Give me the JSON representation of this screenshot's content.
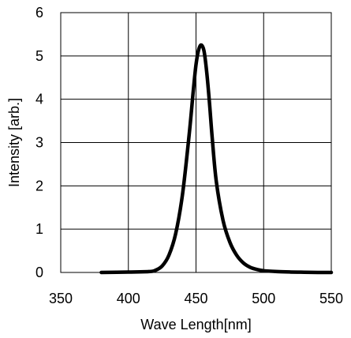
{
  "chart_data": {
    "type": "line",
    "title": "",
    "xlabel": "Wave Length[nm]",
    "ylabel": "Intensity [arb.]",
    "xlim": [
      350,
      550
    ],
    "ylim": [
      0,
      6
    ],
    "x_ticks": [
      350,
      400,
      450,
      500,
      550
    ],
    "y_ticks": [
      0,
      1,
      2,
      3,
      4,
      5,
      6
    ],
    "x_tick_labels": [
      "350",
      "400",
      "450",
      "500",
      "550"
    ],
    "y_tick_labels": [
      "0",
      "1",
      "2",
      "3",
      "4",
      "5",
      "6"
    ],
    "grid": true,
    "legend": "none",
    "series": [
      {
        "color": "#000000",
        "x": [
          380,
          400,
          415,
          420,
          425,
          430,
          435,
          440,
          445,
          448,
          450,
          452,
          454,
          456,
          458,
          460,
          462,
          465,
          470,
          475,
          480,
          485,
          490,
          495,
          500,
          510,
          520,
          530,
          540,
          550
        ],
        "y": [
          0.0,
          0.01,
          0.02,
          0.05,
          0.15,
          0.4,
          0.9,
          1.8,
          3.2,
          4.2,
          4.8,
          5.15,
          5.25,
          5.1,
          4.6,
          3.9,
          3.1,
          2.1,
          1.2,
          0.7,
          0.4,
          0.22,
          0.12,
          0.07,
          0.04,
          0.02,
          0.01,
          0.005,
          0.0,
          0.0
        ]
      }
    ]
  }
}
